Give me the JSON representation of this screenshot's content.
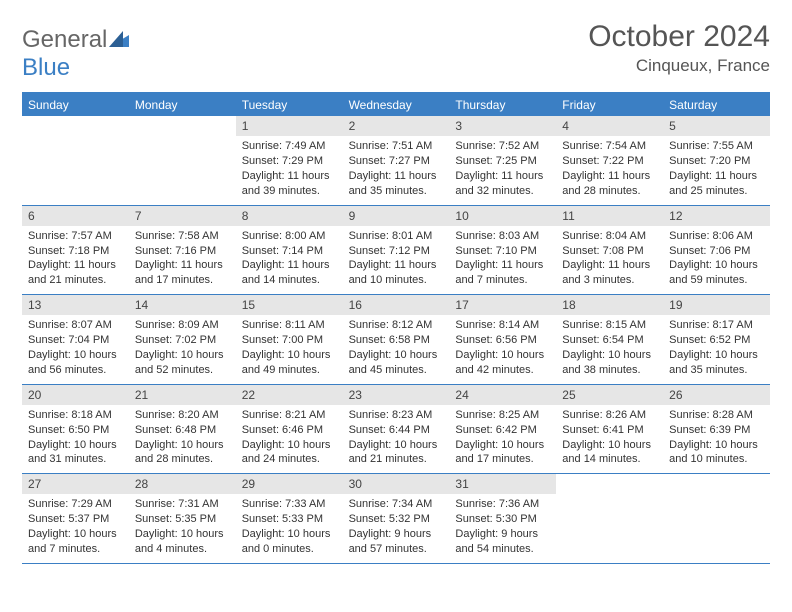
{
  "logo": {
    "text1": "General",
    "text2": "Blue"
  },
  "title": {
    "month": "October 2024",
    "location": "Cinqueux, France"
  },
  "colors": {
    "accent": "#3b7fc4",
    "header_text": "#ffffff",
    "num_row_bg": "#e6e6e6",
    "body_text": "#333333",
    "title_text": "#555555",
    "page_bg": "#ffffff"
  },
  "day_names": [
    "Sunday",
    "Monday",
    "Tuesday",
    "Wednesday",
    "Thursday",
    "Friday",
    "Saturday"
  ],
  "weeks": [
    [
      null,
      null,
      {
        "n": "1",
        "sr": "7:49 AM",
        "ss": "7:29 PM",
        "dl": "11 hours and 39 minutes."
      },
      {
        "n": "2",
        "sr": "7:51 AM",
        "ss": "7:27 PM",
        "dl": "11 hours and 35 minutes."
      },
      {
        "n": "3",
        "sr": "7:52 AM",
        "ss": "7:25 PM",
        "dl": "11 hours and 32 minutes."
      },
      {
        "n": "4",
        "sr": "7:54 AM",
        "ss": "7:22 PM",
        "dl": "11 hours and 28 minutes."
      },
      {
        "n": "5",
        "sr": "7:55 AM",
        "ss": "7:20 PM",
        "dl": "11 hours and 25 minutes."
      }
    ],
    [
      {
        "n": "6",
        "sr": "7:57 AM",
        "ss": "7:18 PM",
        "dl": "11 hours and 21 minutes."
      },
      {
        "n": "7",
        "sr": "7:58 AM",
        "ss": "7:16 PM",
        "dl": "11 hours and 17 minutes."
      },
      {
        "n": "8",
        "sr": "8:00 AM",
        "ss": "7:14 PM",
        "dl": "11 hours and 14 minutes."
      },
      {
        "n": "9",
        "sr": "8:01 AM",
        "ss": "7:12 PM",
        "dl": "11 hours and 10 minutes."
      },
      {
        "n": "10",
        "sr": "8:03 AM",
        "ss": "7:10 PM",
        "dl": "11 hours and 7 minutes."
      },
      {
        "n": "11",
        "sr": "8:04 AM",
        "ss": "7:08 PM",
        "dl": "11 hours and 3 minutes."
      },
      {
        "n": "12",
        "sr": "8:06 AM",
        "ss": "7:06 PM",
        "dl": "10 hours and 59 minutes."
      }
    ],
    [
      {
        "n": "13",
        "sr": "8:07 AM",
        "ss": "7:04 PM",
        "dl": "10 hours and 56 minutes."
      },
      {
        "n": "14",
        "sr": "8:09 AM",
        "ss": "7:02 PM",
        "dl": "10 hours and 52 minutes."
      },
      {
        "n": "15",
        "sr": "8:11 AM",
        "ss": "7:00 PM",
        "dl": "10 hours and 49 minutes."
      },
      {
        "n": "16",
        "sr": "8:12 AM",
        "ss": "6:58 PM",
        "dl": "10 hours and 45 minutes."
      },
      {
        "n": "17",
        "sr": "8:14 AM",
        "ss": "6:56 PM",
        "dl": "10 hours and 42 minutes."
      },
      {
        "n": "18",
        "sr": "8:15 AM",
        "ss": "6:54 PM",
        "dl": "10 hours and 38 minutes."
      },
      {
        "n": "19",
        "sr": "8:17 AM",
        "ss": "6:52 PM",
        "dl": "10 hours and 35 minutes."
      }
    ],
    [
      {
        "n": "20",
        "sr": "8:18 AM",
        "ss": "6:50 PM",
        "dl": "10 hours and 31 minutes."
      },
      {
        "n": "21",
        "sr": "8:20 AM",
        "ss": "6:48 PM",
        "dl": "10 hours and 28 minutes."
      },
      {
        "n": "22",
        "sr": "8:21 AM",
        "ss": "6:46 PM",
        "dl": "10 hours and 24 minutes."
      },
      {
        "n": "23",
        "sr": "8:23 AM",
        "ss": "6:44 PM",
        "dl": "10 hours and 21 minutes."
      },
      {
        "n": "24",
        "sr": "8:25 AM",
        "ss": "6:42 PM",
        "dl": "10 hours and 17 minutes."
      },
      {
        "n": "25",
        "sr": "8:26 AM",
        "ss": "6:41 PM",
        "dl": "10 hours and 14 minutes."
      },
      {
        "n": "26",
        "sr": "8:28 AM",
        "ss": "6:39 PM",
        "dl": "10 hours and 10 minutes."
      }
    ],
    [
      {
        "n": "27",
        "sr": "7:29 AM",
        "ss": "5:37 PM",
        "dl": "10 hours and 7 minutes."
      },
      {
        "n": "28",
        "sr": "7:31 AM",
        "ss": "5:35 PM",
        "dl": "10 hours and 4 minutes."
      },
      {
        "n": "29",
        "sr": "7:33 AM",
        "ss": "5:33 PM",
        "dl": "10 hours and 0 minutes."
      },
      {
        "n": "30",
        "sr": "7:34 AM",
        "ss": "5:32 PM",
        "dl": "9 hours and 57 minutes."
      },
      {
        "n": "31",
        "sr": "7:36 AM",
        "ss": "5:30 PM",
        "dl": "9 hours and 54 minutes."
      },
      null,
      null
    ]
  ],
  "labels": {
    "sunrise": "Sunrise:",
    "sunset": "Sunset:",
    "daylight": "Daylight:"
  }
}
